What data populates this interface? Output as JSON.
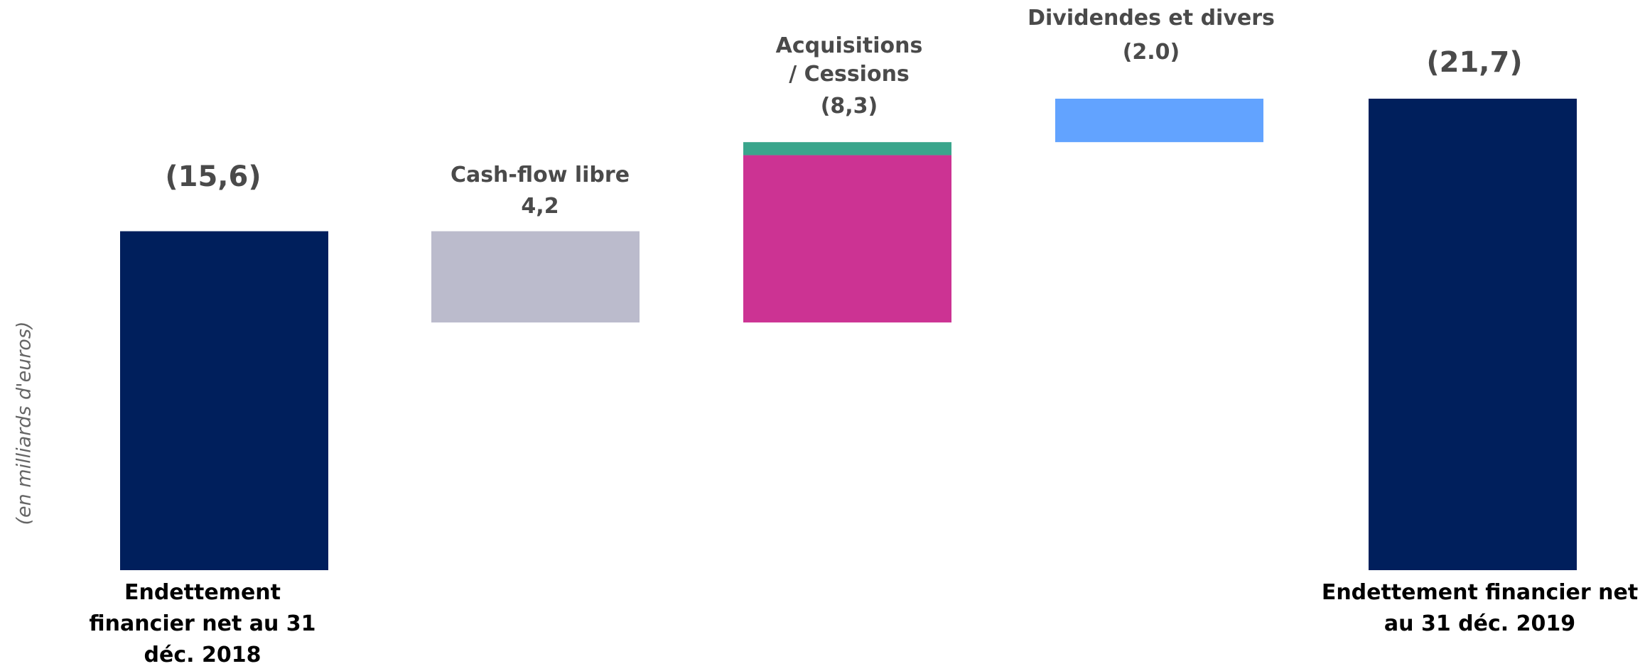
{
  "chart_data": {
    "type": "waterfall",
    "ylabel": "(en milliards d'euros)",
    "steps": [
      {
        "category": "Endettement financier net au 31 déc. 2018",
        "title": "",
        "value_label": "(15,6)",
        "kind": "total",
        "end": -15.6,
        "segments": [
          {
            "value": -15.6,
            "color": "#001f5c"
          }
        ]
      },
      {
        "category": "",
        "title": "Cash-flow libre",
        "value_label": "4,2",
        "kind": "delta",
        "start": -15.6,
        "end": -11.4,
        "segments": [
          {
            "value": 4.2,
            "color": "#bbbbcc"
          }
        ]
      },
      {
        "category": "",
        "title": "Acquisitions / Cessions",
        "value_label": "(8,3)",
        "kind": "delta",
        "start": -11.4,
        "end": -19.7,
        "segments": [
          {
            "value": -7.7,
            "color": "#cc3393"
          },
          {
            "value": -0.6,
            "color": "#3aa58c"
          }
        ]
      },
      {
        "category": "",
        "title": "Dividendes et divers",
        "value_label": "(2.0)",
        "kind": "delta",
        "start": -19.7,
        "end": -21.7,
        "segments": [
          {
            "value": -2.0,
            "color": "#62a3ff"
          }
        ]
      },
      {
        "category": "Endettement financier net au 31 déc. 2019",
        "title": "",
        "value_label": "(21,7)",
        "kind": "total",
        "end": -21.7,
        "segments": [
          {
            "value": -21.7,
            "color": "#001f5c"
          }
        ]
      }
    ]
  }
}
